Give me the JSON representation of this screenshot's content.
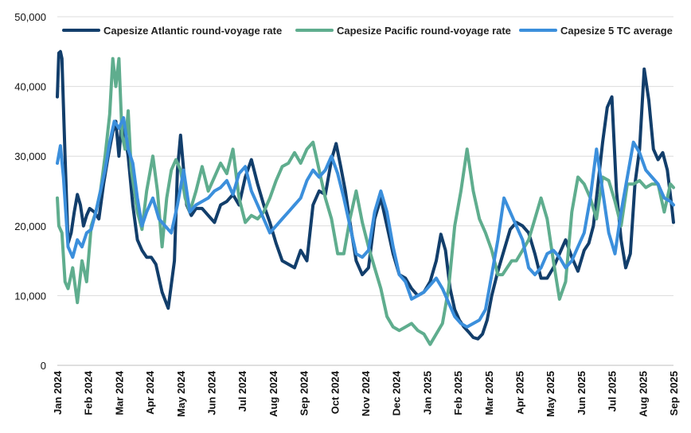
{
  "chart_data": {
    "type": "line",
    "title": "",
    "xlabel": "",
    "ylabel": "",
    "ylim": [
      0,
      50000
    ],
    "yticks": [
      0,
      10000,
      20000,
      30000,
      40000,
      50000
    ],
    "ytick_labels": [
      "0",
      "10,000",
      "20,000",
      "30,000",
      "40,000",
      "50,000"
    ],
    "xlim": [
      0,
      20
    ],
    "xtick_labels": [
      "Jan 2024",
      "Feb 2024",
      "Mar 2024",
      "Apr 2024",
      "May 2024",
      "Jun 2024",
      "Jul 2024",
      "Aug 2024",
      "Sep 2024",
      "Oct 2024",
      "Nov 2024",
      "Dec 2024",
      "Jan 2025",
      "Feb 2025",
      "Mar 2025",
      "Apr 2025",
      "May 2025",
      "Jun 2025",
      "Jul 2025",
      "Aug 2025",
      "Sep 2025"
    ],
    "x_unit": "months since Jan 2024",
    "grid": "horizontal",
    "legend_position": "top",
    "series": [
      {
        "name": "Capesize Atlantic round-voyage rate",
        "color": "#123e6b",
        "x": [
          0,
          0.05,
          0.1,
          0.15,
          0.25,
          0.35,
          0.45,
          0.55,
          0.65,
          0.75,
          0.85,
          0.95,
          1.05,
          1.2,
          1.35,
          1.5,
          1.65,
          1.8,
          1.9,
          2.0,
          2.1,
          2.2,
          2.3,
          2.45,
          2.6,
          2.75,
          2.9,
          3.05,
          3.2,
          3.4,
          3.6,
          3.8,
          3.9,
          4.0,
          4.1,
          4.2,
          4.35,
          4.5,
          4.7,
          4.9,
          5.1,
          5.3,
          5.5,
          5.7,
          5.9,
          6.1,
          6.3,
          6.5,
          6.7,
          6.9,
          7.1,
          7.3,
          7.5,
          7.7,
          7.9,
          8.1,
          8.3,
          8.5,
          8.7,
          8.9,
          9.05,
          9.2,
          9.35,
          9.5,
          9.7,
          9.9,
          10.1,
          10.3,
          10.5,
          10.7,
          10.9,
          11.1,
          11.3,
          11.5,
          11.7,
          11.9,
          12.1,
          12.3,
          12.45,
          12.6,
          12.75,
          12.9,
          13.05,
          13.2,
          13.35,
          13.5,
          13.65,
          13.8,
          13.95,
          14.1,
          14.3,
          14.5,
          14.7,
          14.9,
          15.1,
          15.3,
          15.5,
          15.7,
          15.9,
          16.1,
          16.3,
          16.5,
          16.7,
          16.9,
          17.1,
          17.25,
          17.4,
          17.55,
          17.7,
          17.85,
          18.0,
          18.15,
          18.3,
          18.45,
          18.6,
          18.75,
          18.9,
          19.05,
          19.2,
          19.35,
          19.5,
          19.65,
          19.8,
          19.95,
          20.0
        ],
        "values": [
          38500,
          44800,
          45000,
          44000,
          30000,
          17500,
          19000,
          22000,
          24500,
          23000,
          20000,
          21500,
          22500,
          22000,
          21000,
          26000,
          30000,
          33500,
          35000,
          30000,
          35500,
          33000,
          30000,
          23000,
          18000,
          16500,
          15500,
          15500,
          14500,
          10500,
          8200,
          15000,
          28000,
          33000,
          28000,
          23000,
          21500,
          22500,
          22500,
          21500,
          20500,
          23000,
          23500,
          24500,
          23000,
          27000,
          29500,
          26000,
          23000,
          20500,
          17500,
          15000,
          14500,
          14000,
          16500,
          15000,
          23000,
          25000,
          24500,
          29500,
          31800,
          28500,
          25000,
          20500,
          15000,
          13000,
          14000,
          21000,
          24000,
          20000,
          16000,
          13000,
          12500,
          11000,
          10000,
          10500,
          12000,
          15000,
          18800,
          16500,
          11000,
          8000,
          6500,
          5500,
          4800,
          4000,
          3800,
          4500,
          6500,
          10000,
          13500,
          16500,
          19500,
          20500,
          20000,
          19000,
          16000,
          12500,
          12500,
          14000,
          16000,
          18000,
          15500,
          13500,
          16500,
          17500,
          20000,
          26000,
          32000,
          37000,
          38500,
          25000,
          18000,
          14000,
          16000,
          26000,
          31000,
          42500,
          38000,
          31000,
          29500,
          30500,
          28000,
          22500,
          20500
        ],
        "line_width": 4
      },
      {
        "name": "Capesize Pacific round-voyage rate",
        "color": "#5fad8e",
        "x": [
          0,
          0.05,
          0.15,
          0.25,
          0.35,
          0.5,
          0.65,
          0.8,
          0.95,
          1.1,
          1.25,
          1.4,
          1.55,
          1.7,
          1.8,
          1.9,
          2.0,
          2.1,
          2.2,
          2.3,
          2.4,
          2.5,
          2.6,
          2.75,
          2.9,
          3.1,
          3.25,
          3.4,
          3.55,
          3.7,
          3.85,
          4.0,
          4.15,
          4.3,
          4.5,
          4.7,
          4.9,
          5.1,
          5.3,
          5.5,
          5.7,
          5.9,
          6.1,
          6.3,
          6.5,
          6.7,
          6.9,
          7.1,
          7.3,
          7.5,
          7.7,
          7.9,
          8.1,
          8.3,
          8.5,
          8.7,
          8.9,
          9.1,
          9.3,
          9.5,
          9.7,
          9.9,
          10.1,
          10.3,
          10.5,
          10.7,
          10.9,
          11.1,
          11.3,
          11.5,
          11.7,
          11.9,
          12.1,
          12.3,
          12.5,
          12.7,
          12.9,
          13.1,
          13.3,
          13.5,
          13.7,
          13.9,
          14.1,
          14.3,
          14.45,
          14.6,
          14.75,
          14.9,
          15.1,
          15.3,
          15.5,
          15.7,
          15.9,
          16.1,
          16.3,
          16.5,
          16.7,
          16.9,
          17.1,
          17.3,
          17.5,
          17.7,
          17.9,
          18.1,
          18.3,
          18.5,
          18.7,
          18.9,
          19.1,
          19.3,
          19.5,
          19.7,
          19.9,
          20.0
        ],
        "values": [
          24000,
          20000,
          19000,
          12000,
          11000,
          14000,
          9000,
          15000,
          12000,
          20000,
          22000,
          25000,
          30000,
          36000,
          44000,
          40000,
          44000,
          33000,
          31000,
          36500,
          28000,
          25000,
          22000,
          19500,
          25000,
          30000,
          25000,
          17000,
          24000,
          28000,
          29500,
          28000,
          24000,
          22000,
          25000,
          28500,
          25000,
          27000,
          29000,
          27500,
          31000,
          24000,
          20500,
          21500,
          21000,
          22000,
          24000,
          26500,
          28500,
          29000,
          30500,
          29000,
          31000,
          32000,
          28000,
          24000,
          21000,
          16000,
          16000,
          21000,
          25000,
          20500,
          17000,
          14000,
          11000,
          7000,
          5500,
          5000,
          5500,
          6000,
          5000,
          4500,
          3000,
          4500,
          6000,
          11000,
          20000,
          25000,
          31000,
          25000,
          21000,
          19000,
          16500,
          13000,
          13000,
          14000,
          15000,
          15000,
          16500,
          18000,
          21000,
          24000,
          21000,
          15000,
          9500,
          12000,
          22000,
          27000,
          26000,
          24000,
          21000,
          27000,
          26500,
          23500,
          20000,
          26000,
          26000,
          26500,
          25500,
          26000,
          26000,
          22000,
          26000,
          25500
        ],
        "line_width": 4
      },
      {
        "name": "Capesize 5 TC average",
        "color": "#3b8fdc",
        "x": [
          0,
          0.1,
          0.2,
          0.35,
          0.5,
          0.65,
          0.8,
          0.95,
          1.1,
          1.25,
          1.4,
          1.55,
          1.7,
          1.85,
          2.0,
          2.15,
          2.3,
          2.45,
          2.6,
          2.75,
          2.9,
          3.1,
          3.3,
          3.5,
          3.7,
          3.9,
          4.1,
          4.3,
          4.5,
          4.7,
          4.9,
          5.1,
          5.3,
          5.5,
          5.7,
          5.9,
          6.1,
          6.3,
          6.5,
          6.7,
          6.9,
          7.1,
          7.3,
          7.5,
          7.7,
          7.9,
          8.1,
          8.3,
          8.5,
          8.7,
          8.9,
          9.1,
          9.3,
          9.5,
          9.7,
          9.9,
          10.1,
          10.3,
          10.5,
          10.7,
          10.9,
          11.1,
          11.3,
          11.5,
          11.7,
          11.9,
          12.1,
          12.3,
          12.5,
          12.7,
          12.9,
          13.1,
          13.3,
          13.5,
          13.7,
          13.9,
          14.1,
          14.3,
          14.5,
          14.7,
          14.9,
          15.1,
          15.3,
          15.5,
          15.7,
          15.9,
          16.1,
          16.3,
          16.5,
          16.7,
          16.9,
          17.1,
          17.3,
          17.5,
          17.7,
          17.9,
          18.1,
          18.3,
          18.5,
          18.7,
          18.9,
          19.1,
          19.3,
          19.5,
          19.7,
          19.9,
          20.0
        ],
        "values": [
          29000,
          31500,
          27000,
          17000,
          15500,
          18000,
          17000,
          19000,
          19500,
          22000,
          25000,
          28000,
          32000,
          35000,
          34000,
          35500,
          31000,
          29000,
          24000,
          20000,
          22000,
          24000,
          21000,
          20000,
          19000,
          23000,
          28000,
          22000,
          23000,
          23500,
          24000,
          25000,
          25500,
          26500,
          24500,
          27500,
          28500,
          25000,
          23000,
          21000,
          19000,
          20000,
          21000,
          22000,
          23000,
          24000,
          26500,
          28000,
          27000,
          28000,
          30000,
          27500,
          24000,
          20000,
          16000,
          15500,
          16500,
          22000,
          25000,
          22000,
          17000,
          13000,
          12000,
          9500,
          10000,
          10500,
          11500,
          12500,
          11000,
          9000,
          7000,
          6000,
          5500,
          6000,
          6500,
          8000,
          13000,
          18000,
          24000,
          22000,
          20000,
          18000,
          14000,
          13000,
          14000,
          16000,
          16500,
          15500,
          14000,
          15000,
          17000,
          19000,
          24000,
          31000,
          25000,
          19000,
          16000,
          22000,
          27000,
          32000,
          30500,
          28000,
          27000,
          26000,
          24000,
          23500,
          23000
        ],
        "line_width": 4
      }
    ]
  }
}
